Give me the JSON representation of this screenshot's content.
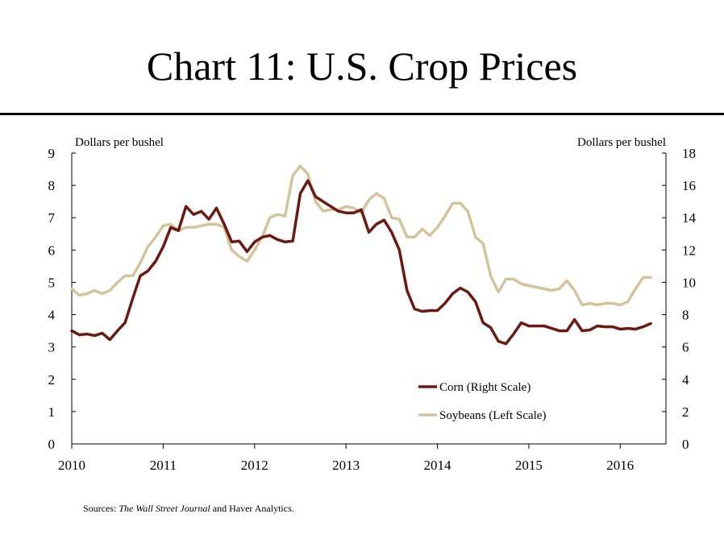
{
  "title": "Chart 11: U.S. Crop Prices",
  "source": {
    "prefix": "Sources: ",
    "italic": "The Wall Street Journal",
    "suffix": " and Haver Analytics."
  },
  "colors": {
    "corn": "#6b1a12",
    "soybeans": "#d4c49b",
    "axis": "#000000"
  },
  "chart_data": {
    "type": "line",
    "title": "Chart 11: U.S. Crop Prices",
    "left_axis": {
      "label": "Dollars per bushel",
      "range": [
        0,
        9
      ],
      "ticks": [
        0,
        1,
        2,
        3,
        4,
        5,
        6,
        7,
        8,
        9
      ]
    },
    "right_axis": {
      "label": "Dollars per bushel",
      "range": [
        0,
        18
      ],
      "ticks": [
        0,
        2,
        4,
        6,
        8,
        10,
        12,
        14,
        16,
        18
      ]
    },
    "x_range": [
      2010,
      2016.5
    ],
    "x_ticks": [
      "2010",
      "2011",
      "2012",
      "2013",
      "2014",
      "2015",
      "2016"
    ],
    "legend_position": "bottom-right",
    "grid": false,
    "series": [
      {
        "name": "Corn (Right Scale)",
        "axis": "right",
        "x": [
          2010.0,
          2010.083,
          2010.167,
          2010.25,
          2010.333,
          2010.417,
          2010.5,
          2010.583,
          2010.667,
          2010.75,
          2010.833,
          2010.917,
          2011.0,
          2011.083,
          2011.167,
          2011.25,
          2011.333,
          2011.417,
          2011.5,
          2011.583,
          2011.667,
          2011.75,
          2011.833,
          2011.917,
          2012.0,
          2012.083,
          2012.167,
          2012.25,
          2012.333,
          2012.417,
          2012.5,
          2012.583,
          2012.667,
          2012.75,
          2012.833,
          2012.917,
          2013.0,
          2013.083,
          2013.167,
          2013.25,
          2013.333,
          2013.417,
          2013.5,
          2013.583,
          2013.667,
          2013.75,
          2013.833,
          2013.917,
          2014.0,
          2014.083,
          2014.167,
          2014.25,
          2014.333,
          2014.417,
          2014.5,
          2014.583,
          2014.667,
          2014.75,
          2014.833,
          2014.917,
          2015.0,
          2015.083,
          2015.167,
          2015.25,
          2015.333,
          2015.417,
          2015.5,
          2015.583,
          2015.667,
          2015.75,
          2015.833,
          2015.917,
          2016.0,
          2016.083,
          2016.167,
          2016.25,
          2016.333
        ],
        "values": [
          7.0,
          6.75,
          6.8,
          6.7,
          6.85,
          6.45,
          7.0,
          7.5,
          9.0,
          10.4,
          10.7,
          11.3,
          12.2,
          13.4,
          13.2,
          14.7,
          14.2,
          14.4,
          13.9,
          14.6,
          13.6,
          12.5,
          12.55,
          11.9,
          12.5,
          12.8,
          12.9,
          12.65,
          12.5,
          12.55,
          15.5,
          16.3,
          15.3,
          15.0,
          14.7,
          14.4,
          14.3,
          14.3,
          14.5,
          13.1,
          13.6,
          13.85,
          13.1,
          12.0,
          9.5,
          8.35,
          8.2,
          8.25,
          8.25,
          8.7,
          9.3,
          9.65,
          9.4,
          8.8,
          7.5,
          7.2,
          6.35,
          6.2,
          6.8,
          7.5,
          7.3,
          7.3,
          7.3,
          7.15,
          7.0,
          7.0,
          7.7,
          7.0,
          7.05,
          7.3,
          7.25,
          7.25,
          7.1,
          7.15,
          7.1,
          7.25,
          7.45
        ]
      },
      {
        "name": "Soybeans (Left Scale)",
        "axis": "left",
        "x": [
          2010.0,
          2010.083,
          2010.167,
          2010.25,
          2010.333,
          2010.417,
          2010.5,
          2010.583,
          2010.667,
          2010.75,
          2010.833,
          2010.917,
          2011.0,
          2011.083,
          2011.167,
          2011.25,
          2011.333,
          2011.417,
          2011.5,
          2011.583,
          2011.667,
          2011.75,
          2011.833,
          2011.917,
          2012.0,
          2012.083,
          2012.167,
          2012.25,
          2012.333,
          2012.417,
          2012.5,
          2012.583,
          2012.667,
          2012.75,
          2012.833,
          2012.917,
          2013.0,
          2013.083,
          2013.167,
          2013.25,
          2013.333,
          2013.417,
          2013.5,
          2013.583,
          2013.667,
          2013.75,
          2013.833,
          2013.917,
          2014.0,
          2014.083,
          2014.167,
          2014.25,
          2014.333,
          2014.417,
          2014.5,
          2014.583,
          2014.667,
          2014.75,
          2014.833,
          2014.917,
          2015.0,
          2015.083,
          2015.167,
          2015.25,
          2015.333,
          2015.417,
          2015.5,
          2015.583,
          2015.667,
          2015.75,
          2015.833,
          2015.917,
          2016.0,
          2016.083,
          2016.167,
          2016.25,
          2016.333
        ],
        "values": [
          4.8,
          4.6,
          4.65,
          4.75,
          4.65,
          4.75,
          5.0,
          5.2,
          5.2,
          5.6,
          6.1,
          6.4,
          6.75,
          6.8,
          6.6,
          6.7,
          6.7,
          6.75,
          6.8,
          6.8,
          6.7,
          6.0,
          5.8,
          5.65,
          6.0,
          6.4,
          7.0,
          7.1,
          7.05,
          8.3,
          8.6,
          8.35,
          7.5,
          7.2,
          7.25,
          7.25,
          7.35,
          7.3,
          7.15,
          7.55,
          7.75,
          7.6,
          7.0,
          6.95,
          6.4,
          6.4,
          6.65,
          6.45,
          6.7,
          7.05,
          7.45,
          7.45,
          7.2,
          6.4,
          6.2,
          5.2,
          4.7,
          5.1,
          5.1,
          4.95,
          4.9,
          4.85,
          4.8,
          4.75,
          4.8,
          5.05,
          4.75,
          4.3,
          4.35,
          4.3,
          4.35,
          4.35,
          4.3,
          4.4,
          4.8,
          5.15,
          5.15
        ]
      }
    ]
  }
}
